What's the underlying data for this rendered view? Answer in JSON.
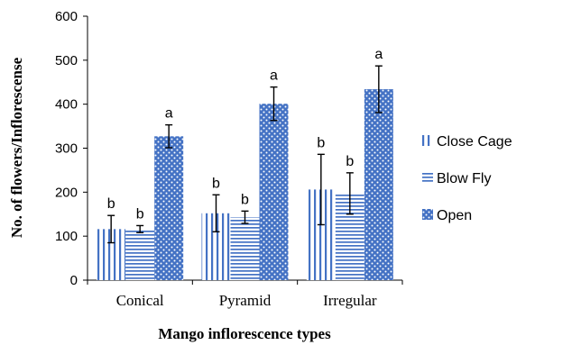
{
  "chart_data": {
    "type": "bar",
    "title": "",
    "xlabel": "Mango inflorescence types",
    "ylabel": "No. of flowers/Inflorescense",
    "ylim": [
      0,
      600
    ],
    "yticks": [
      0,
      100,
      200,
      300,
      400,
      500,
      600
    ],
    "categories": [
      "Conical",
      "Pyramid",
      "Irregular"
    ],
    "legend_position": "right",
    "grid": false,
    "series": [
      {
        "name": "Close Cage",
        "pattern": "vertical-lines",
        "color": "#4472c4",
        "values": [
          116,
          152,
          206
        ],
        "errors": [
          31,
          42,
          80
        ],
        "letters": [
          "b",
          "b",
          "b"
        ]
      },
      {
        "name": "Blow Fly",
        "pattern": "horizontal-lines",
        "color": "#4472c4",
        "values": [
          116,
          143,
          197
        ],
        "errors": [
          8,
          14,
          47
        ],
        "letters": [
          "b",
          "b",
          "b"
        ]
      },
      {
        "name": "Open",
        "pattern": "dots",
        "color": "#4472c4",
        "values": [
          327,
          401,
          434
        ],
        "errors": [
          26,
          38,
          53
        ],
        "letters": [
          "a",
          "a",
          "a"
        ]
      }
    ]
  }
}
